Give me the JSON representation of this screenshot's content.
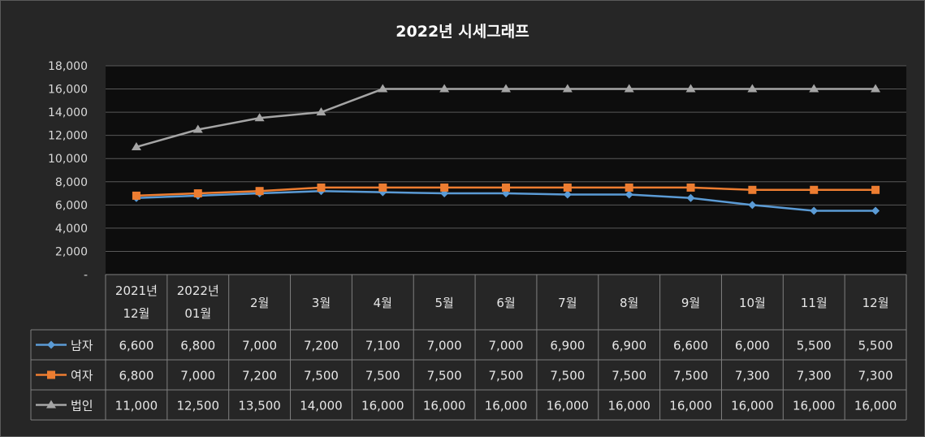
{
  "chart_data": {
    "type": "line",
    "title": "2022년 시세그래프",
    "categories": [
      [
        "2021년",
        "12월"
      ],
      [
        "2022년",
        "01월"
      ],
      [
        "2월"
      ],
      [
        "3월"
      ],
      [
        "4월"
      ],
      [
        "5월"
      ],
      [
        "6월"
      ],
      [
        "7월"
      ],
      [
        "8월"
      ],
      [
        "9월"
      ],
      [
        "10월"
      ],
      [
        "11월"
      ],
      [
        "12월"
      ]
    ],
    "series": [
      {
        "name": "남자",
        "color": "#5b9bd5",
        "marker": "diamond",
        "values": [
          6600,
          6800,
          7000,
          7200,
          7100,
          7000,
          7000,
          6900,
          6900,
          6600,
          6000,
          5500,
          5500
        ]
      },
      {
        "name": "여자",
        "color": "#ed7d31",
        "marker": "square",
        "values": [
          6800,
          7000,
          7200,
          7500,
          7500,
          7500,
          7500,
          7500,
          7500,
          7500,
          7300,
          7300,
          7300
        ]
      },
      {
        "name": "법인",
        "color": "#a5a5a5",
        "marker": "triangle",
        "values": [
          11000,
          12500,
          13500,
          14000,
          16000,
          16000,
          16000,
          16000,
          16000,
          16000,
          16000,
          16000,
          16000
        ]
      }
    ],
    "ylim": [
      0,
      18000
    ],
    "yticks": [
      "-",
      "2,000",
      "4,000",
      "6,000",
      "8,000",
      "10,000",
      "12,000",
      "14,000",
      "16,000",
      "18,000"
    ],
    "grid": true,
    "data_table": {
      "rows": [
        [
          "6,600",
          "6,800",
          "7,000",
          "7,200",
          "7,100",
          "7,000",
          "7,000",
          "6,900",
          "6,900",
          "6,600",
          "6,000",
          "5,500",
          "5,500"
        ],
        [
          "6,800",
          "7,000",
          "7,200",
          "7,500",
          "7,500",
          "7,500",
          "7,500",
          "7,500",
          "7,500",
          "7,500",
          "7,300",
          "7,300",
          "7,300"
        ],
        [
          "11,000",
          "12,500",
          "13,500",
          "14,000",
          "16,000",
          "16,000",
          "16,000",
          "16,000",
          "16,000",
          "16,000",
          "16,000",
          "16,000",
          "16,000"
        ]
      ]
    }
  }
}
